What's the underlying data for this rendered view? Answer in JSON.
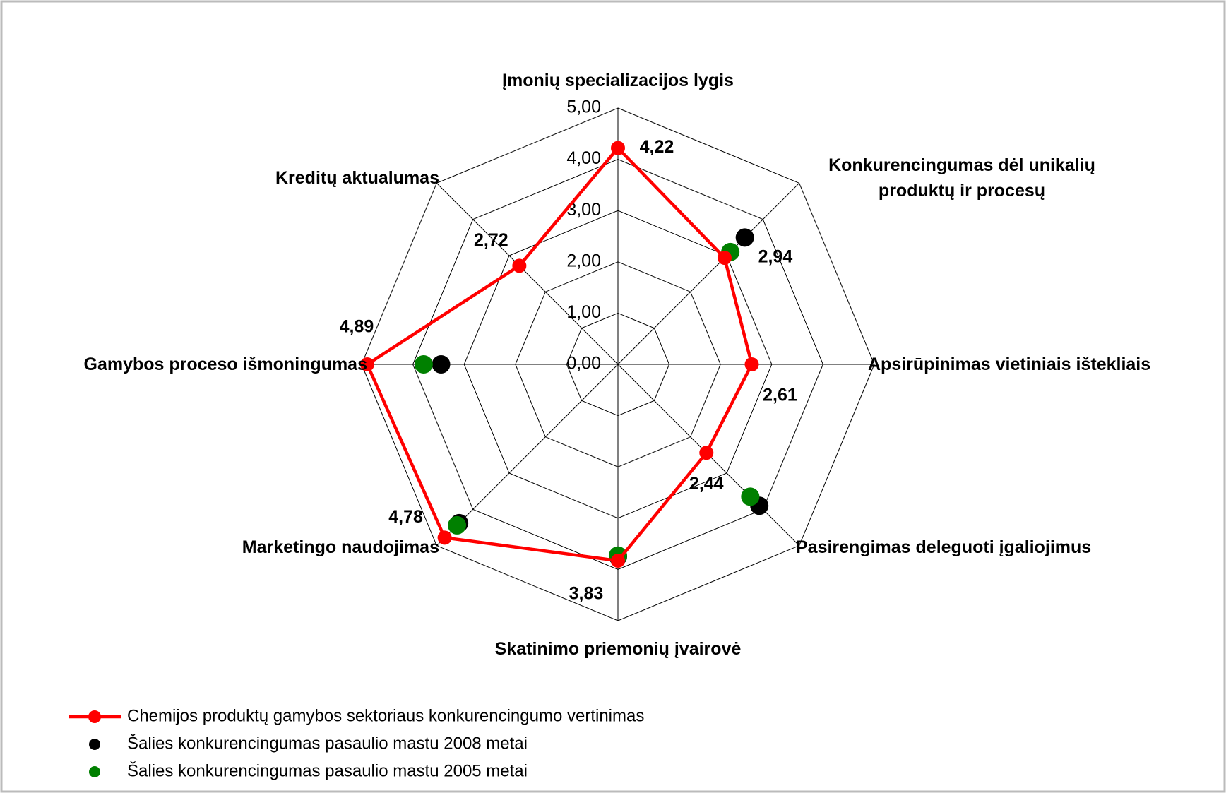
{
  "chart_data": {
    "type": "radar",
    "categories": [
      "Įmonių specializacijos lygis",
      "Konkurencingumas dėl unikalių produktų ir procesų",
      "Apsirūpinimas vietiniais ištekliais",
      "Pasirengimas deleguoti įgaliojimus",
      "Skatinimo priemonių įvairovė",
      "Marketingo naudojimas",
      "Gamybos proceso išmoningumas",
      "Kreditų aktualumas"
    ],
    "rlim": [
      0,
      5
    ],
    "rticks": [
      {
        "value": 0,
        "label": "0,00"
      },
      {
        "value": 1,
        "label": "1,00"
      },
      {
        "value": 2,
        "label": "2,00"
      },
      {
        "value": 3,
        "label": "3,00"
      },
      {
        "value": 4,
        "label": "4,00"
      },
      {
        "value": 5,
        "label": "5,00"
      }
    ],
    "grid": true,
    "legend": "bottom-left",
    "series": [
      {
        "name": "Chemijos produktų gamybos sektoriaus konkurencingumo vertinimas",
        "color": "#ff0000",
        "line": true,
        "values": [
          4.22,
          2.94,
          2.61,
          2.44,
          3.83,
          4.78,
          4.89,
          2.72
        ],
        "value_labels": [
          "4,22",
          "2,94",
          "2,61",
          "2,44",
          "3,83",
          "4,78",
          "4,89",
          "2,72"
        ]
      },
      {
        "name": "Šalies konkurencingumas pasaulio mastu 2008 metai",
        "color": "#000000",
        "line": false,
        "values": [
          null,
          3.5,
          null,
          3.9,
          3.75,
          4.38,
          3.45,
          null
        ]
      },
      {
        "name": "Šalies konkurencingumas pasaulio mastu 2005 metai",
        "color": "#008000",
        "line": false,
        "values": [
          null,
          3.1,
          null,
          3.65,
          3.73,
          4.44,
          3.79,
          null
        ]
      }
    ]
  }
}
